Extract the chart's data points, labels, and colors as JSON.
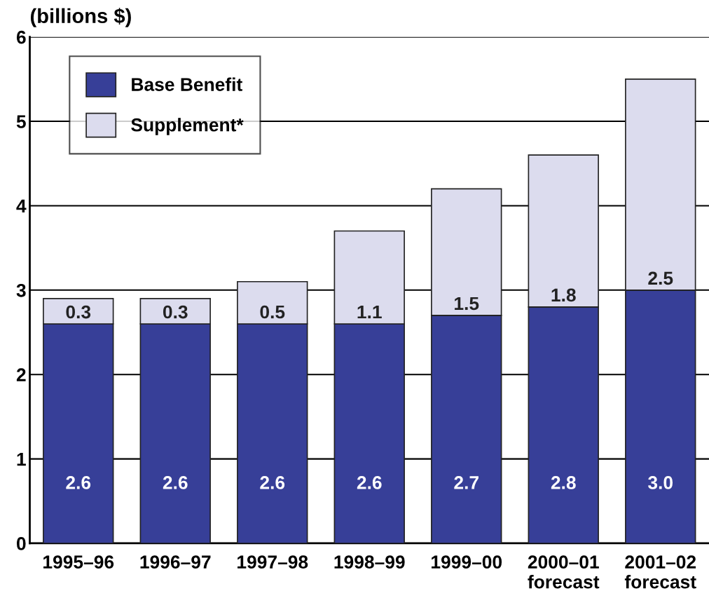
{
  "chart_data": {
    "type": "bar",
    "stacked": true,
    "ylabel": "(billions $)",
    "categories": [
      "1995–96",
      "1996–97",
      "1997–98",
      "1998–99",
      "1999–00",
      "2000–01\nforecast",
      "2001–02\nforecast"
    ],
    "series": [
      {
        "name": "Base Benefit",
        "color": "#373f98",
        "values": [
          2.6,
          2.6,
          2.6,
          2.6,
          2.7,
          2.8,
          3.0
        ],
        "value_labels": [
          "2.6",
          "2.6",
          "2.6",
          "2.6",
          "2.7",
          "2.8",
          "3.0"
        ]
      },
      {
        "name": "Supplement*",
        "color": "#dcdcee",
        "values": [
          0.3,
          0.3,
          0.5,
          1.1,
          1.5,
          1.8,
          2.5
        ],
        "value_labels": [
          "0.3",
          "0.3",
          "0.5",
          "1.1",
          "1.5",
          "1.8",
          "2.5"
        ]
      }
    ],
    "ylim": [
      0,
      6
    ],
    "yticks": [
      0,
      1,
      2,
      3,
      4,
      5,
      6
    ],
    "grid": "y",
    "legend": "top left"
  }
}
